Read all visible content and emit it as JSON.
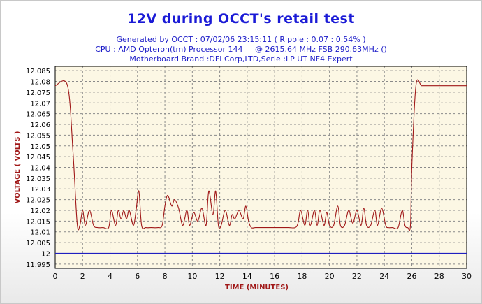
{
  "chart_data": {
    "type": "line",
    "title": "12V during OCCT's retail test",
    "subtitle_lines": [
      "Generated by OCCT : 07/02/06 23:15:11 ( Ripple : 0.07 : 0.54% )",
      "CPU : AMD Opteron(tm) Processor 144     @ 2615.64 MHz FSB 290.63MHz ()",
      "Motherboard Brand :DFI Corp,LTD,Serie :LP UT NF4 Expert"
    ],
    "xlabel": "TIME (MINUTES)",
    "ylabel": "VOLTAGE ( VOLTS )",
    "xlim": [
      0,
      30
    ],
    "ylim": [
      11.993,
      12.087
    ],
    "x_ticks": [
      "0",
      "2",
      "4",
      "6",
      "8",
      "10",
      "12",
      "14",
      "16",
      "18",
      "20",
      "22",
      "24",
      "26",
      "28",
      "30"
    ],
    "y_ticks": [
      "12.085",
      "12.08",
      "12.075",
      "12.07",
      "12.065",
      "12.06",
      "12.055",
      "12.05",
      "12.045",
      "12.04",
      "12.035",
      "12.03",
      "12.025",
      "12.02",
      "12.015",
      "12.01",
      "12.005",
      "12",
      "11.995"
    ],
    "grid": true,
    "colors": {
      "voltage": "#a01818",
      "reference": "#2020c0",
      "plot_bg": "#fcf7e4",
      "axis_label": "#a01818",
      "title": "#1a1ad6"
    },
    "series": [
      {
        "values_x": [
          0,
          0.9,
          1.3,
          1.6,
          1.8,
          2.0,
          2.2,
          2.5,
          2.8,
          3.1,
          3.5,
          3.9,
          4.1,
          4.4,
          4.6,
          4.8,
          5.0,
          5.2,
          5.4,
          5.7,
          5.9,
          6.1,
          6.3,
          6.6,
          7.0,
          7.5,
          7.8,
          8.0,
          8.2,
          8.5,
          8.7,
          9.0,
          9.3,
          9.6,
          9.8,
          10.1,
          10.4,
          10.7,
          11.0,
          11.2,
          11.5,
          11.7,
          11.9,
          12.1,
          12.4,
          12.7,
          12.9,
          13.1,
          13.4,
          13.7,
          13.9,
          14.1,
          14.3,
          14.6,
          15.0,
          16.0,
          17.0,
          17.5,
          17.7,
          17.9,
          18.2,
          18.4,
          18.6,
          18.9,
          19.1,
          19.3,
          19.6,
          19.8,
          20.0,
          20.3,
          20.6,
          20.8,
          21.1,
          21.4,
          21.7,
          22.0,
          22.3,
          22.5,
          22.7,
          23.0,
          23.3,
          23.5,
          23.8,
          24.1,
          24.3,
          24.6,
          25.0,
          25.3,
          25.5,
          25.7,
          25.9,
          26.0,
          26.3,
          26.7,
          27.0,
          28.0,
          29.0,
          30.0
        ],
        "values_y": [
          12.078,
          12.078,
          12.047,
          12.014,
          12.013,
          12.02,
          12.013,
          12.02,
          12.013,
          12.012,
          12.012,
          12.012,
          12.02,
          12.013,
          12.02,
          12.016,
          12.02,
          12.016,
          12.02,
          12.013,
          12.02,
          12.029,
          12.013,
          12.012,
          12.012,
          12.012,
          12.013,
          12.022,
          12.027,
          12.022,
          12.025,
          12.021,
          12.013,
          12.02,
          12.013,
          12.019,
          12.015,
          12.021,
          12.013,
          12.029,
          12.018,
          12.029,
          12.013,
          12.013,
          12.02,
          12.013,
          12.018,
          12.016,
          12.02,
          12.016,
          12.022,
          12.015,
          12.012,
          12.012,
          12.012,
          12.012,
          12.012,
          12.012,
          12.014,
          12.02,
          12.013,
          12.02,
          12.013,
          12.02,
          12.013,
          12.02,
          12.013,
          12.019,
          12.013,
          12.013,
          12.022,
          12.013,
          12.013,
          12.02,
          12.014,
          12.02,
          12.013,
          12.021,
          12.013,
          12.013,
          12.02,
          12.013,
          12.021,
          12.013,
          12.012,
          12.012,
          12.012,
          12.02,
          12.013,
          12.012,
          12.013,
          12.04,
          12.078,
          12.078,
          12.078,
          12.078,
          12.078,
          12.078
        ]
      },
      {
        "values_x": [
          0,
          30
        ],
        "values_y": [
          12.0,
          12.0
        ]
      }
    ]
  }
}
